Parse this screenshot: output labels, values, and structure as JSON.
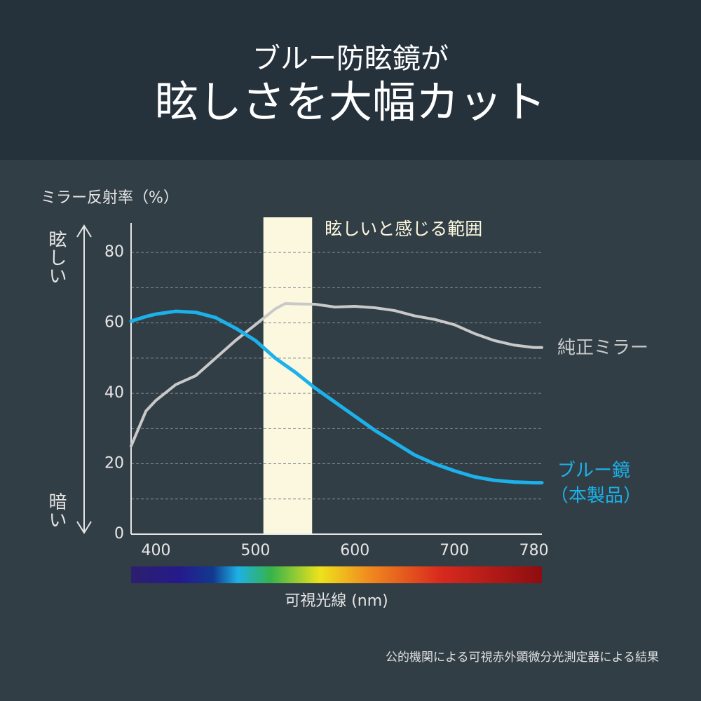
{
  "chart_data": {
    "type": "line",
    "title_lines": [
      "ブルー防眩鏡が",
      "眩しさを大幅カット"
    ],
    "ylabel": "ミラー反射率（%）",
    "ylabel_high": "眩しい",
    "ylabel_low": "暗い",
    "xlabel": "可視光線 (nm)",
    "footnote": "公的機関による可視赤外顕微分光測定器による結果",
    "highlight": {
      "range": [
        508,
        557
      ],
      "label": "眩しいと感じる範囲",
      "color": "#fcf8df"
    },
    "xlim": [
      375,
      788
    ],
    "ylim": [
      0,
      88
    ],
    "xticks": [
      400,
      500,
      600,
      700,
      780
    ],
    "yticks": [
      0,
      20,
      40,
      60,
      80
    ],
    "minor_grid": [
      10,
      30,
      50,
      70
    ],
    "grid": true,
    "x": [
      375,
      390,
      400,
      420,
      440,
      460,
      480,
      500,
      520,
      530,
      540,
      560,
      580,
      600,
      620,
      640,
      660,
      680,
      700,
      720,
      740,
      760,
      780,
      788
    ],
    "series": [
      {
        "name": "純正ミラー",
        "color": "#c9c9c9",
        "values": [
          25,
          35,
          38,
          42.5,
          45,
          50,
          55,
          59.5,
          64,
          65.5,
          65.4,
          65.3,
          64.5,
          64.7,
          64.3,
          63.5,
          62,
          61,
          59.5,
          57,
          55,
          53.7,
          53,
          53
        ]
      },
      {
        "name": "ブルー鏡",
        "note": "（本製品）",
        "color": "#1cb1ea",
        "values": [
          60.5,
          61.8,
          62.5,
          63.3,
          63,
          61.5,
          58.5,
          55,
          50,
          48,
          46,
          41.5,
          37.5,
          33.5,
          29.5,
          26,
          22.5,
          20,
          18,
          16.3,
          15.3,
          14.8,
          14.6,
          14.6
        ]
      }
    ]
  }
}
